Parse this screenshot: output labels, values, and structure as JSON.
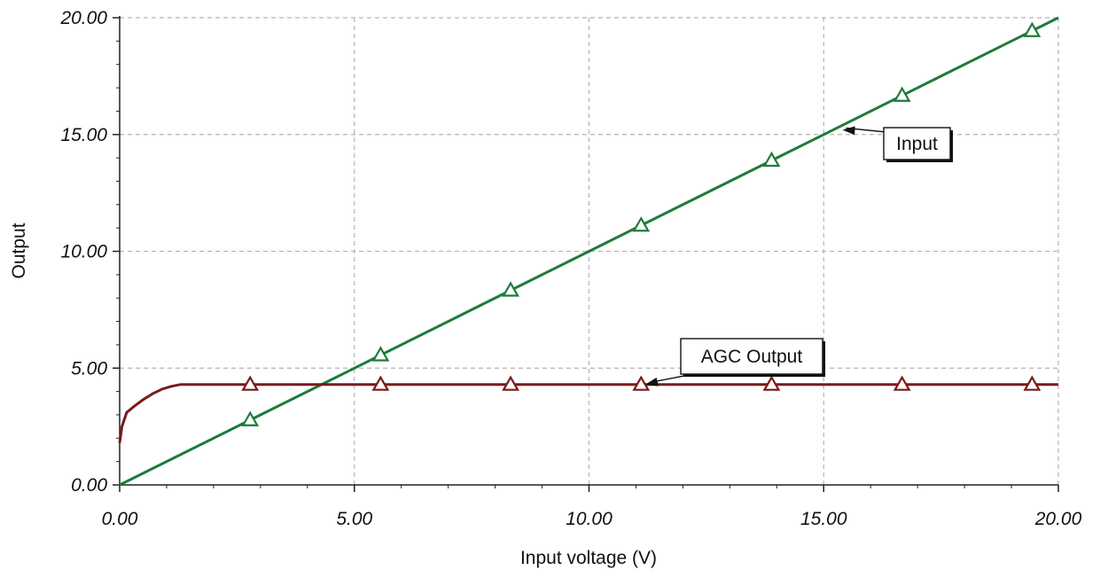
{
  "chart_data": {
    "type": "line",
    "title": "",
    "xlabel": "Input voltage (V)",
    "ylabel": "Output",
    "xlim": [
      0,
      20
    ],
    "ylim": [
      0,
      20
    ],
    "x_ticks": [
      "0.00",
      "5.00",
      "10.00",
      "15.00",
      "20.00"
    ],
    "y_ticks": [
      "0.00",
      "5.00",
      "10.00",
      "15.00",
      "20.00"
    ],
    "grid": true,
    "series": [
      {
        "name": "Input",
        "color": "#1f7a3a",
        "marker": "triangle",
        "points": [
          [
            0,
            0
          ],
          [
            2.5,
            2.5
          ],
          [
            5,
            5
          ],
          [
            7.5,
            7.5
          ],
          [
            10,
            10
          ],
          [
            12.5,
            12.5
          ],
          [
            15,
            15
          ],
          [
            17.5,
            17.5
          ],
          [
            20,
            20
          ]
        ],
        "marker_x": [
          2.78,
          5.56,
          8.33,
          11.11,
          13.89,
          16.67,
          19.44
        ]
      },
      {
        "name": "AGC Output",
        "color": "#7a1a1a",
        "marker": "triangle",
        "points": [
          [
            0,
            1.8
          ],
          [
            0.05,
            2.5
          ],
          [
            0.15,
            3.1
          ],
          [
            0.3,
            3.35
          ],
          [
            0.5,
            3.65
          ],
          [
            0.7,
            3.9
          ],
          [
            0.9,
            4.1
          ],
          [
            1.1,
            4.22
          ],
          [
            1.3,
            4.3
          ],
          [
            2,
            4.3
          ],
          [
            5,
            4.3
          ],
          [
            10,
            4.3
          ],
          [
            15,
            4.3
          ],
          [
            20,
            4.3
          ]
        ],
        "marker_x": [
          2.78,
          5.56,
          8.33,
          11.11,
          13.89,
          16.67,
          19.44
        ]
      }
    ],
    "annotations": [
      {
        "text": "Input",
        "target": [
          15.4,
          15.2
        ]
      },
      {
        "text": "AGC Output",
        "target": [
          11.2,
          4.3
        ]
      }
    ]
  }
}
